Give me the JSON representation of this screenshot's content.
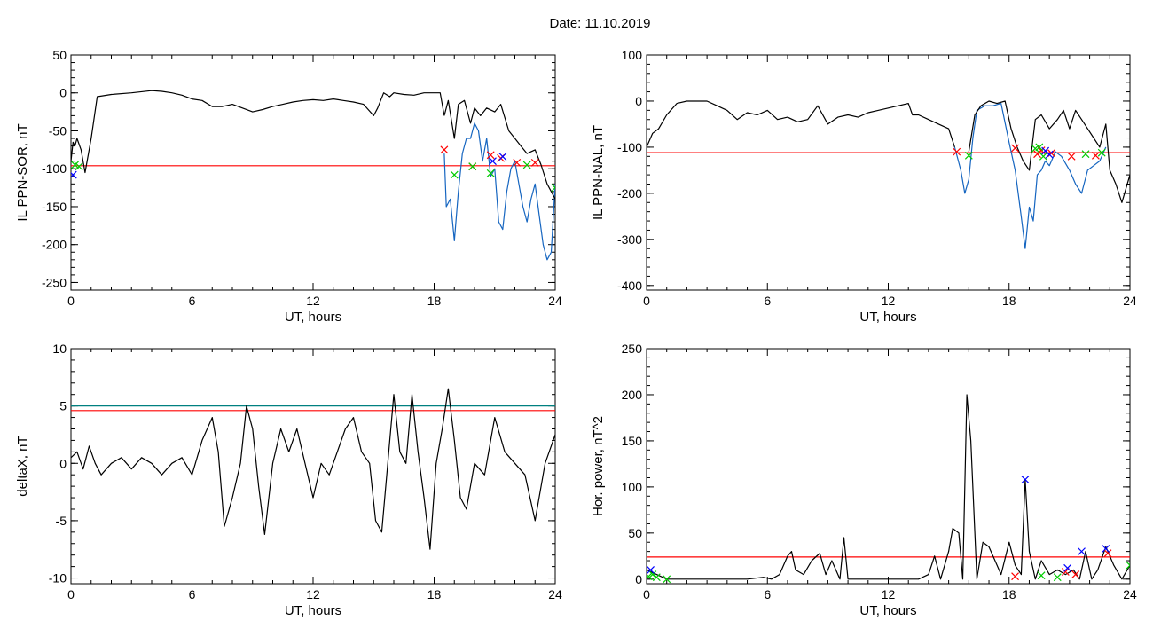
{
  "figure": {
    "title": "Date:  11.10.2019"
  },
  "chart_data": [
    {
      "type": "line",
      "xlabel": "UT, hours",
      "ylabel": "IL PPN-SOR, nT",
      "xlim": [
        0,
        24
      ],
      "ylim": [
        -260,
        50
      ],
      "xticks": [
        0,
        6,
        12,
        18,
        24
      ],
      "yticks": [
        -250,
        -200,
        -150,
        -100,
        -50,
        0,
        50
      ],
      "threshold": {
        "value": -96,
        "color": "#ff0000"
      },
      "series": [
        {
          "color": "#000000",
          "x": [
            0,
            0.1,
            0.2,
            0.3,
            0.5,
            0.7,
            1.0,
            1.3,
            2,
            3,
            4,
            4.5,
            5,
            5.5,
            6,
            6.5,
            7,
            7.5,
            8,
            8.5,
            9,
            9.5,
            10,
            10.5,
            11,
            11.5,
            12,
            12.5,
            13,
            13.5,
            14,
            14.5,
            15,
            15.2,
            15.5,
            15.8,
            16,
            16.5,
            17,
            17.5,
            18,
            18.3,
            18.5
          ],
          "y": [
            -90,
            -65,
            -70,
            -60,
            -75,
            -105,
            -60,
            -5,
            -2,
            0,
            3,
            2,
            0,
            -3,
            -8,
            -10,
            -18,
            -18,
            -15,
            -20,
            -25,
            -22,
            -18,
            -15,
            -12,
            -10,
            -9,
            -10,
            -8,
            -10,
            -12,
            -15,
            -30,
            -20,
            0,
            -5,
            0,
            -2,
            -3,
            0,
            0,
            0,
            -30
          ]
        },
        {
          "color": "#1565c0",
          "x": [
            18.5,
            18.6,
            18.8,
            19.0,
            19.2,
            19.4,
            19.6,
            19.8,
            20.0,
            20.2,
            20.4,
            20.6,
            20.8,
            21.0,
            21.2,
            21.4,
            21.6,
            21.8,
            22.0,
            22.2,
            22.4,
            22.6,
            22.8,
            23.0,
            23.2,
            23.4,
            23.6,
            23.8,
            24.0
          ],
          "y": [
            -80,
            -150,
            -140,
            -195,
            -130,
            -80,
            -60,
            -60,
            -40,
            -50,
            -90,
            -60,
            -110,
            -100,
            -170,
            -180,
            -130,
            -100,
            -90,
            -120,
            -150,
            -170,
            -140,
            -120,
            -160,
            -200,
            -220,
            -210,
            -120
          ]
        },
        {
          "color": "#000000",
          "x": [
            18.5,
            18.7,
            19.0,
            19.2,
            19.5,
            19.8,
            20.0,
            20.3,
            20.6,
            21.0,
            21.3,
            21.7,
            22.0,
            22.3,
            22.6,
            23.0,
            23.3,
            23.6,
            24.0
          ],
          "y": [
            -30,
            -10,
            -60,
            -15,
            -10,
            -40,
            -20,
            -30,
            -20,
            -25,
            -15,
            -50,
            -60,
            -70,
            -80,
            -75,
            -95,
            -120,
            -140
          ]
        }
      ],
      "markers": [
        {
          "color": "#ff0000",
          "x": [
            18.5,
            19.9,
            20.8,
            21.3,
            22.1,
            23.0
          ],
          "y": [
            -75,
            -97,
            -82,
            -86,
            -92,
            -92
          ]
        },
        {
          "color": "#00cc00",
          "x": [
            0.2,
            0.4,
            19.0,
            19.9,
            20.8,
            22.6,
            24.0
          ],
          "y": [
            -95,
            -97,
            -108,
            -97,
            -106,
            -95,
            -125
          ]
        },
        {
          "color": "#0000ff",
          "x": [
            0.1,
            20.9,
            21.4
          ],
          "y": [
            -108,
            -90,
            -84
          ]
        }
      ]
    },
    {
      "type": "line",
      "xlabel": "UT, hours",
      "ylabel": "IL PPN-NAL, nT",
      "xlim": [
        0,
        24
      ],
      "ylim": [
        -410,
        100
      ],
      "xticks": [
        0,
        6,
        12,
        18,
        24
      ],
      "yticks": [
        -400,
        -300,
        -200,
        -100,
        0,
        100
      ],
      "threshold": {
        "value": -112,
        "color": "#ff0000"
      },
      "series": [
        {
          "color": "#000000",
          "x": [
            0,
            0.3,
            0.6,
            1.0,
            1.5,
            2,
            3,
            3.5,
            4,
            4.5,
            5,
            5.5,
            6,
            6.5,
            7,
            7.5,
            8,
            8.5,
            9,
            9.5,
            10,
            10.5,
            11,
            11.5,
            12,
            12.5,
            13,
            13.2,
            13.5,
            14,
            14.5,
            15,
            15.3
          ],
          "y": [
            -100,
            -70,
            -60,
            -30,
            -5,
            0,
            0,
            -10,
            -20,
            -40,
            -25,
            -30,
            -20,
            -40,
            -35,
            -45,
            -40,
            -10,
            -50,
            -35,
            -30,
            -35,
            -25,
            -20,
            -15,
            -10,
            -5,
            -30,
            -30,
            -40,
            -50,
            -60,
            -100
          ]
        },
        {
          "color": "#1565c0",
          "x": [
            15.3,
            15.6,
            15.8,
            16.0,
            16.2,
            16.4,
            16.8,
            17.2,
            17.6,
            18.0,
            18.3,
            18.6,
            18.8,
            19.0,
            19.2,
            19.4,
            19.6,
            19.8,
            20.0,
            20.3,
            20.6,
            21.0,
            21.3,
            21.6,
            21.9,
            22.2,
            22.5,
            22.8
          ],
          "y": [
            -100,
            -150,
            -200,
            -170,
            -80,
            -20,
            -10,
            -10,
            -5,
            -90,
            -150,
            -250,
            -320,
            -230,
            -260,
            -160,
            -150,
            -130,
            -140,
            -110,
            -120,
            -150,
            -180,
            -200,
            -150,
            -140,
            -130,
            -100
          ]
        },
        {
          "color": "#000000",
          "x": [
            16.0,
            16.3,
            16.6,
            17.0,
            17.4,
            17.8,
            18.1,
            18.4,
            18.7,
            19.0,
            19.3,
            19.6,
            20.0,
            20.4,
            20.7,
            21.0,
            21.3,
            21.6,
            21.9,
            22.2,
            22.5,
            22.8,
            23.0,
            23.3,
            23.6,
            24.0
          ],
          "y": [
            -110,
            -30,
            -10,
            0,
            -5,
            0,
            -60,
            -100,
            -130,
            -150,
            -40,
            -30,
            -60,
            -40,
            -20,
            -60,
            -20,
            -40,
            -60,
            -80,
            -100,
            -50,
            -150,
            -180,
            -220,
            -160
          ]
        }
      ],
      "markers": [
        {
          "color": "#ff0000",
          "x": [
            15.4,
            18.3,
            19.4,
            19.6,
            20.1,
            21.1,
            22.3
          ],
          "y": [
            -110,
            -102,
            -115,
            -107,
            -113,
            -120,
            -118
          ]
        },
        {
          "color": "#00cc00",
          "x": [
            16.0,
            19.3,
            19.5,
            19.7,
            21.8,
            22.6
          ],
          "y": [
            -118,
            -103,
            -100,
            -120,
            -115,
            -112
          ]
        },
        {
          "color": "#0000ff",
          "x": [
            19.8,
            20.0
          ],
          "y": [
            -108,
            -116
          ]
        }
      ]
    },
    {
      "type": "line",
      "xlabel": "UT, hours",
      "ylabel": "deltaX, nT",
      "xlim": [
        0,
        24
      ],
      "ylim": [
        -10.5,
        10
      ],
      "xticks": [
        0,
        6,
        12,
        18,
        24
      ],
      "yticks": [
        -10,
        -5,
        0,
        5,
        10
      ],
      "thresholds": [
        {
          "value": 5.0,
          "color": "#008080"
        },
        {
          "value": 4.6,
          "color": "#ff0000"
        }
      ],
      "series": [
        {
          "color": "#000000",
          "x": [
            0,
            0.3,
            0.6,
            0.9,
            1.2,
            1.5,
            2,
            2.5,
            3,
            3.5,
            4,
            4.5,
            5,
            5.5,
            6,
            6.5,
            7.0,
            7.3,
            7.6,
            8.0,
            8.4,
            8.7,
            9.0,
            9.3,
            9.6,
            10.0,
            10.4,
            10.8,
            11.2,
            11.6,
            12.0,
            12.4,
            12.8,
            13.2,
            13.6,
            14.0,
            14.4,
            14.8,
            15.1,
            15.4,
            15.7,
            16.0,
            16.3,
            16.6,
            16.9,
            17.2,
            17.5,
            17.8,
            18.1,
            18.4,
            18.7,
            19.0,
            19.3,
            19.6,
            20.0,
            20.5,
            21.0,
            21.5,
            22.0,
            22.5,
            23.0,
            23.5,
            24.0
          ],
          "y": [
            0.5,
            1.0,
            -0.5,
            1.5,
            0.0,
            -1.0,
            0.0,
            0.5,
            -0.5,
            0.5,
            0.0,
            -1.0,
            0.0,
            0.5,
            -1.0,
            2.0,
            4.0,
            1.0,
            -5.5,
            -3.0,
            0.0,
            5.0,
            3.0,
            -2.0,
            -6.2,
            0.0,
            3.0,
            1.0,
            3.0,
            0.0,
            -3.0,
            0.0,
            -1.0,
            1.0,
            3.0,
            4.0,
            1.0,
            0.0,
            -5.0,
            -6.0,
            0.0,
            6.0,
            1.0,
            0.0,
            6.0,
            1.0,
            -3.0,
            -7.5,
            0.0,
            3.0,
            6.5,
            2.0,
            -3.0,
            -4.0,
            0.0,
            -1.0,
            4.0,
            1.0,
            0.0,
            -1.0,
            -5.0,
            0.0,
            2.5
          ]
        }
      ],
      "markers": []
    },
    {
      "type": "line",
      "xlabel": "UT, hours",
      "ylabel": "Hor. power, nT^2",
      "xlim": [
        0,
        24
      ],
      "ylim": [
        -5,
        250
      ],
      "xticks": [
        0,
        6,
        12,
        18,
        24
      ],
      "yticks": [
        0,
        50,
        100,
        150,
        200,
        250
      ],
      "threshold": {
        "value": 24,
        "color": "#ff0000"
      },
      "series": [
        {
          "color": "#000000",
          "x": [
            0,
            0.5,
            1,
            2,
            3,
            4,
            5,
            5.8,
            6.2,
            6.6,
            7.0,
            7.2,
            7.4,
            7.8,
            8.2,
            8.6,
            8.9,
            9.2,
            9.6,
            9.8,
            10.0,
            10.5,
            11,
            11.5,
            12,
            12.5,
            13,
            13.5,
            14,
            14.3,
            14.6,
            15.0,
            15.2,
            15.5,
            15.7,
            15.9,
            16.1,
            16.4,
            16.7,
            17.0,
            17.3,
            17.6,
            18.0,
            18.3,
            18.6,
            18.8,
            19.0,
            19.3,
            19.6,
            20.0,
            20.4,
            20.8,
            21.2,
            21.5,
            21.8,
            22.1,
            22.4,
            22.8,
            23.2,
            23.6,
            24.0
          ],
          "y": [
            10,
            5,
            0,
            0,
            0,
            0,
            0,
            2,
            0,
            5,
            25,
            30,
            10,
            5,
            20,
            28,
            5,
            20,
            0,
            45,
            0,
            0,
            0,
            0,
            0,
            0,
            0,
            0,
            5,
            25,
            0,
            30,
            55,
            50,
            0,
            200,
            150,
            0,
            40,
            35,
            20,
            5,
            40,
            15,
            5,
            108,
            30,
            0,
            20,
            5,
            10,
            5,
            10,
            0,
            30,
            0,
            10,
            35,
            15,
            0,
            15
          ]
        }
      ],
      "markers": [
        {
          "color": "#ff0000",
          "x": [
            18.3,
            20.8,
            21.3,
            22.9
          ],
          "y": [
            3,
            8,
            5,
            28
          ]
        },
        {
          "color": "#00cc00",
          "x": [
            0.1,
            0.3,
            0.5,
            1.0,
            19.6,
            20.4,
            24.0
          ],
          "y": [
            3,
            5,
            2,
            0,
            4,
            2,
            15
          ]
        },
        {
          "color": "#0000ff",
          "x": [
            0.2,
            18.8,
            20.9,
            21.6,
            22.8
          ],
          "y": [
            10,
            108,
            12,
            30,
            33
          ]
        }
      ]
    }
  ]
}
